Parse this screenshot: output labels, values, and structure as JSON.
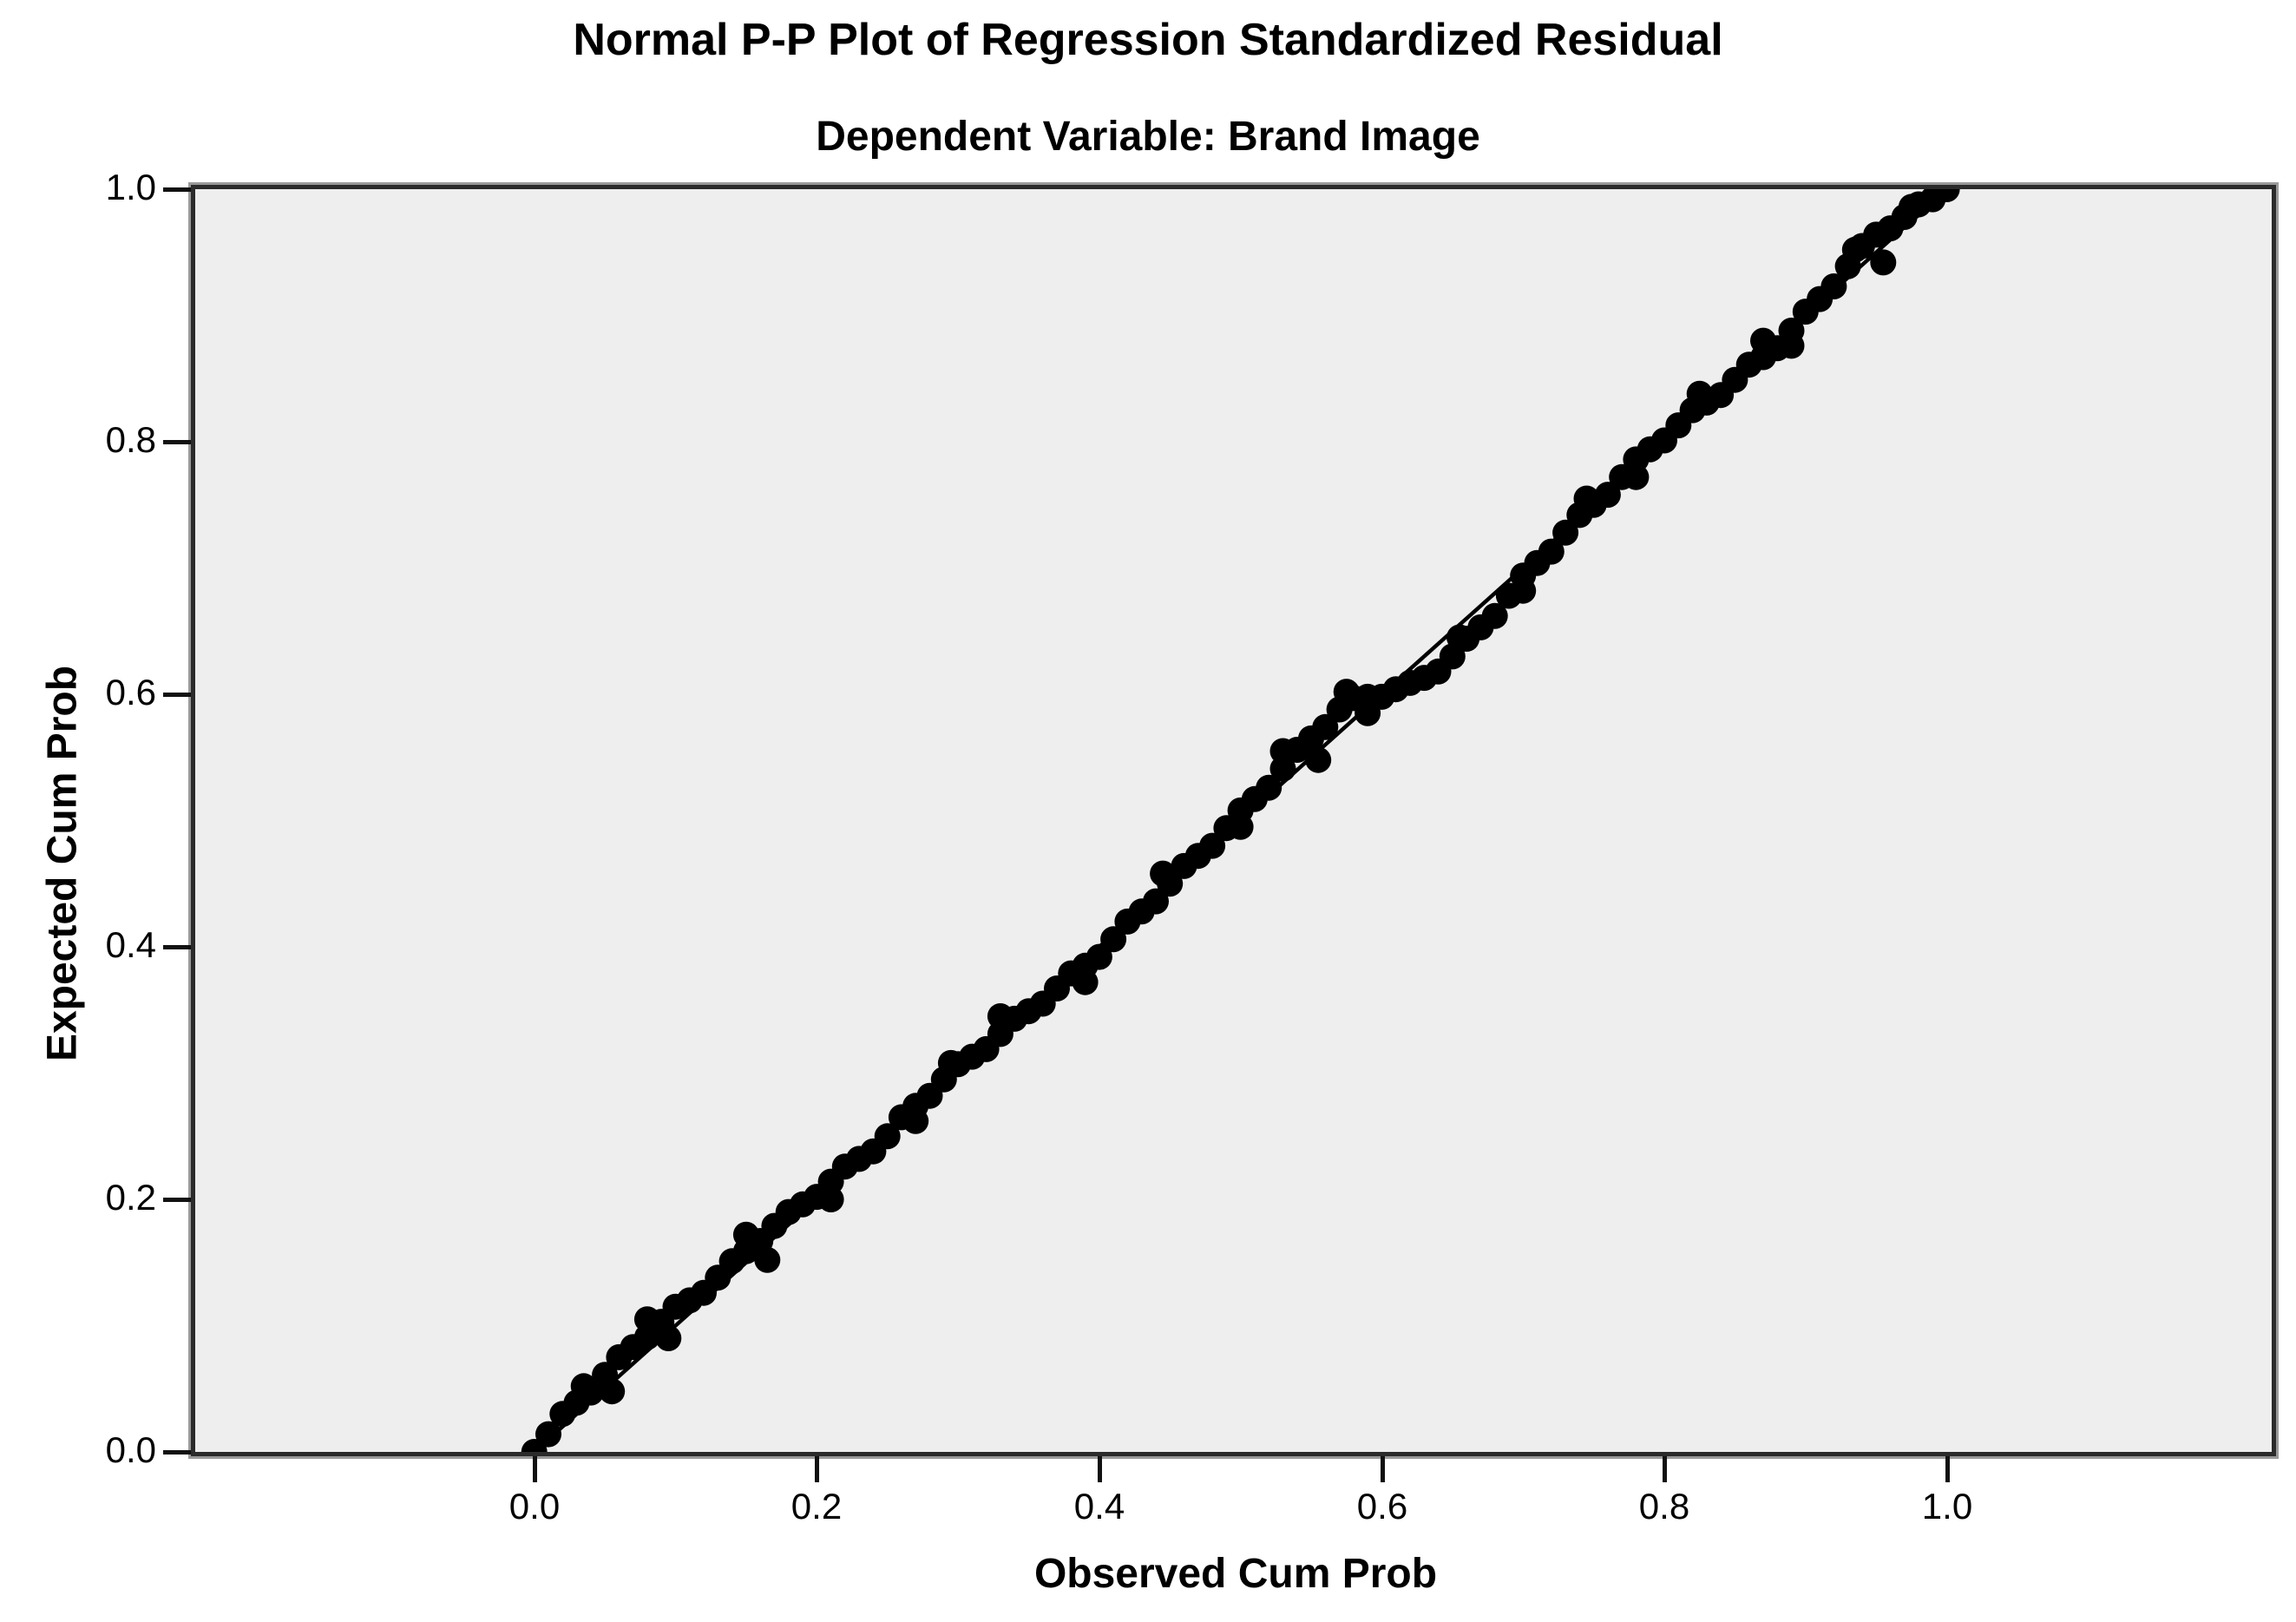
{
  "chart_data": {
    "type": "scatter",
    "title": "Normal P-P Plot of Regression Standardized Residual",
    "subtitle": "Dependent Variable: Brand Image",
    "xlabel": "Observed Cum Prob",
    "ylabel": "Expected Cum Prob",
    "xlim": [
      -0.24,
      1.23
    ],
    "ylim": [
      0.0,
      1.0
    ],
    "x_ticks": [
      0.0,
      0.2,
      0.4,
      0.6,
      0.8,
      1.0
    ],
    "y_ticks": [
      1.0,
      0.8,
      0.6,
      0.4,
      0.2,
      0.0
    ],
    "x_tick_labels": [
      "0.0",
      "0.2",
      "0.4",
      "0.6",
      "0.8",
      "1.0"
    ],
    "y_tick_labels": [
      "1.0",
      "0.8",
      "0.6",
      "0.4",
      "0.2",
      "0.0"
    ],
    "grid": false,
    "legend_position": "none",
    "reference_line": {
      "from": [
        0.0,
        0.0
      ],
      "to": [
        1.0,
        1.0
      ]
    },
    "colors": {
      "marker": "#000000",
      "reference_line": "#000000",
      "plot_background": "#eeeeee",
      "plot_border": "#2b2b2b",
      "page_background": "#ffffff"
    },
    "series": [
      {
        "name": "Regression standardized residual (observed vs expected cumulative probability)",
        "points": [
          [
            0.0,
            0.0
          ],
          [
            0.01,
            0.014
          ],
          [
            0.02,
            0.03
          ],
          [
            0.03,
            0.039
          ],
          [
            0.04,
            0.047
          ],
          [
            0.05,
            0.061
          ],
          [
            0.06,
            0.075
          ],
          [
            0.07,
            0.083
          ],
          [
            0.08,
            0.091
          ],
          [
            0.09,
            0.103
          ],
          [
            0.1,
            0.115
          ],
          [
            0.11,
            0.12
          ],
          [
            0.12,
            0.126
          ],
          [
            0.13,
            0.138
          ],
          [
            0.14,
            0.151
          ],
          [
            0.15,
            0.159
          ],
          [
            0.16,
            0.167
          ],
          [
            0.17,
            0.179
          ],
          [
            0.18,
            0.19
          ],
          [
            0.19,
            0.196
          ],
          [
            0.2,
            0.202
          ],
          [
            0.21,
            0.214
          ],
          [
            0.22,
            0.226
          ],
          [
            0.23,
            0.232
          ],
          [
            0.24,
            0.238
          ],
          [
            0.25,
            0.25
          ],
          [
            0.26,
            0.265
          ],
          [
            0.27,
            0.274
          ],
          [
            0.28,
            0.282
          ],
          [
            0.29,
            0.295
          ],
          [
            0.3,
            0.307
          ],
          [
            0.31,
            0.313
          ],
          [
            0.32,
            0.319
          ],
          [
            0.33,
            0.331
          ],
          [
            0.34,
            0.343
          ],
          [
            0.35,
            0.349
          ],
          [
            0.36,
            0.355
          ],
          [
            0.37,
            0.367
          ],
          [
            0.38,
            0.379
          ],
          [
            0.39,
            0.385
          ],
          [
            0.4,
            0.392
          ],
          [
            0.41,
            0.406
          ],
          [
            0.42,
            0.42
          ],
          [
            0.43,
            0.428
          ],
          [
            0.44,
            0.436
          ],
          [
            0.45,
            0.45
          ],
          [
            0.46,
            0.464
          ],
          [
            0.47,
            0.472
          ],
          [
            0.48,
            0.48
          ],
          [
            0.49,
            0.494
          ],
          [
            0.5,
            0.508
          ],
          [
            0.51,
            0.517
          ],
          [
            0.52,
            0.526
          ],
          [
            0.53,
            0.541
          ],
          [
            0.54,
            0.556
          ],
          [
            0.55,
            0.565
          ],
          [
            0.56,
            0.574
          ],
          [
            0.57,
            0.588
          ],
          [
            0.58,
            0.597
          ],
          [
            0.59,
            0.598
          ],
          [
            0.6,
            0.598
          ],
          [
            0.61,
            0.604
          ],
          [
            0.62,
            0.609
          ],
          [
            0.63,
            0.613
          ],
          [
            0.64,
            0.618
          ],
          [
            0.65,
            0.63
          ],
          [
            0.66,
            0.644
          ],
          [
            0.67,
            0.653
          ],
          [
            0.68,
            0.662
          ],
          [
            0.69,
            0.678
          ],
          [
            0.7,
            0.694
          ],
          [
            0.71,
            0.704
          ],
          [
            0.72,
            0.713
          ],
          [
            0.73,
            0.728
          ],
          [
            0.74,
            0.742
          ],
          [
            0.75,
            0.75
          ],
          [
            0.76,
            0.758
          ],
          [
            0.77,
            0.772
          ],
          [
            0.78,
            0.786
          ],
          [
            0.79,
            0.794
          ],
          [
            0.8,
            0.801
          ],
          [
            0.81,
            0.813
          ],
          [
            0.82,
            0.825
          ],
          [
            0.83,
            0.831
          ],
          [
            0.84,
            0.837
          ],
          [
            0.85,
            0.849
          ],
          [
            0.86,
            0.861
          ],
          [
            0.87,
            0.867
          ],
          [
            0.88,
            0.874
          ],
          [
            0.89,
            0.888
          ],
          [
            0.9,
            0.903
          ],
          [
            0.91,
            0.913
          ],
          [
            0.92,
            0.923
          ],
          [
            0.93,
            0.939
          ],
          [
            0.94,
            0.955
          ],
          [
            0.95,
            0.964
          ],
          [
            0.96,
            0.969
          ],
          [
            0.97,
            0.978
          ],
          [
            0.98,
            0.988
          ],
          [
            0.99,
            0.992
          ],
          [
            1.0,
            1.0
          ],
          [
            0.035,
            0.052
          ],
          [
            0.055,
            0.048
          ],
          [
            0.08,
            0.105
          ],
          [
            0.095,
            0.09
          ],
          [
            0.15,
            0.172
          ],
          [
            0.165,
            0.152
          ],
          [
            0.21,
            0.2
          ],
          [
            0.27,
            0.262
          ],
          [
            0.295,
            0.308
          ],
          [
            0.33,
            0.345
          ],
          [
            0.39,
            0.372
          ],
          [
            0.445,
            0.458
          ],
          [
            0.5,
            0.495
          ],
          [
            0.53,
            0.555
          ],
          [
            0.555,
            0.548
          ],
          [
            0.575,
            0.602
          ],
          [
            0.59,
            0.585
          ],
          [
            0.655,
            0.645
          ],
          [
            0.7,
            0.682
          ],
          [
            0.745,
            0.755
          ],
          [
            0.78,
            0.772
          ],
          [
            0.825,
            0.838
          ],
          [
            0.87,
            0.88
          ],
          [
            0.89,
            0.876
          ],
          [
            0.935,
            0.952
          ],
          [
            0.955,
            0.942
          ],
          [
            0.975,
            0.986
          ]
        ]
      }
    ]
  }
}
